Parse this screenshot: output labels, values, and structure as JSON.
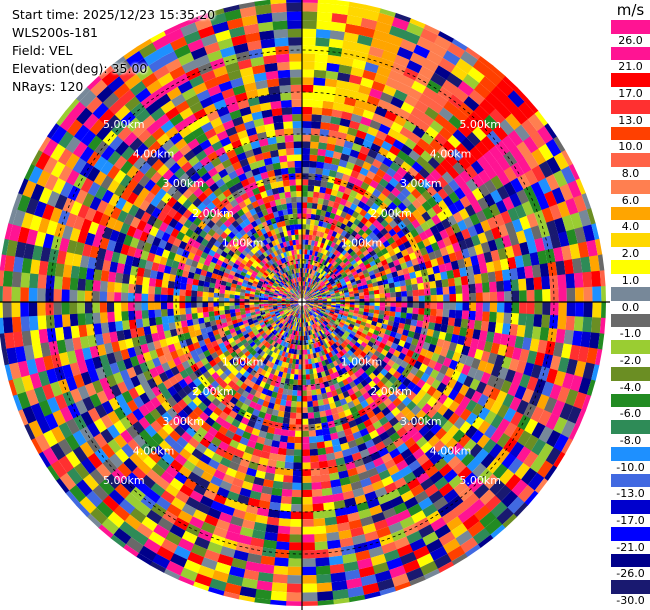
{
  "info": {
    "start_time": "Start time: 2025/12/23 15:35:20",
    "site": "WLS200s-181",
    "field": "Field: VEL",
    "elevation": "Elevation(deg): 35.00",
    "nrays": "NRays: 120"
  },
  "colorbar": {
    "unit": "m/s",
    "ticks": [
      "26.0",
      "21.0",
      "17.0",
      "13.0",
      "10.0",
      "8.0",
      "6.0",
      "4.0",
      "2.0",
      "1.0",
      "0.0",
      "-1.0",
      "-2.0",
      "-4.0",
      "-6.0",
      "-8.0",
      "-10.0",
      "-13.0",
      "-17.0",
      "-21.0",
      "-26.0",
      "-30.0"
    ],
    "colors": [
      "#ff1493",
      "#ff1493",
      "#ff0000",
      "#ff3030",
      "#ff4000",
      "#ff6347",
      "#ff7f50",
      "#ffa500",
      "#ffd700",
      "#ffff00",
      "#778899",
      "#696969",
      "#9acd32",
      "#6b8e23",
      "#228b22",
      "#2e8b57",
      "#1e90ff",
      "#4169e1",
      "#0000cd",
      "#0000ff",
      "#00008b",
      "#191970"
    ]
  },
  "range_rings": {
    "labels": [
      "1.00km",
      "2.00km",
      "3.00km",
      "4.00km",
      "5.00km"
    ]
  },
  "palette_bands": {
    "top_warm": [
      "#ffff00",
      "#ffd700",
      "#ffa500",
      "#ff7f50",
      "#ff6347",
      "#ff4000",
      "#ff0000",
      "#ff1493"
    ]
  }
}
